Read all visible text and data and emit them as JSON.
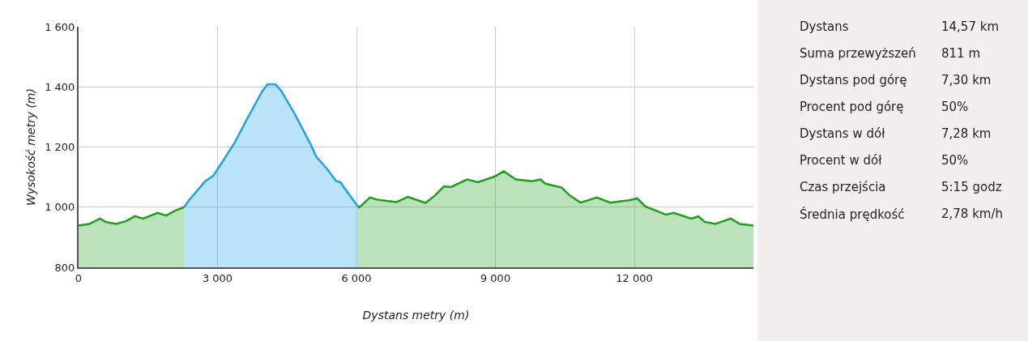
{
  "chart_data": {
    "type": "area",
    "xlabel": "Dystans metry (m)",
    "ylabel": "Wysokość metry (m)",
    "series": [
      {
        "color": "#1f9e1f",
        "x": [
          0,
          230,
          460,
          580,
          810,
          1020,
          1220,
          1390,
          1710,
          1890,
          2090,
          2280
        ],
        "values": [
          939,
          944,
          962,
          951,
          944,
          953,
          970,
          962,
          981,
          972,
          989,
          1000
        ]
      },
      {
        "color": "#1ea3ee",
        "x": [
          2280,
          2390,
          2740,
          2910,
          3140,
          3380,
          3610,
          3960,
          4080,
          4250,
          4370,
          4660,
          5010,
          5130,
          5360,
          5560,
          5650,
          6030
        ],
        "values": [
          1000,
          1024,
          1087,
          1105,
          1159,
          1217,
          1285,
          1384,
          1409,
          1409,
          1388,
          1312,
          1209,
          1168,
          1128,
          1087,
          1083,
          1002
        ]
      },
      {
        "color": "#1f9e1f",
        "x": [
          6030,
          6060,
          6290,
          6470,
          6870,
          7110,
          7490,
          7690,
          7890,
          8040,
          8390,
          8620,
          8970,
          9180,
          9440,
          9790,
          9970,
          10080,
          10430,
          10610,
          10840,
          11190,
          11480,
          11890,
          12060,
          12240,
          12680,
          12850,
          13230,
          13380,
          13520,
          13750,
          14080,
          14280,
          14570
        ],
        "values": [
          1002,
          999,
          1032,
          1024,
          1017,
          1034,
          1014,
          1038,
          1069,
          1067,
          1092,
          1083,
          1101,
          1119,
          1092,
          1086,
          1092,
          1078,
          1065,
          1038,
          1015,
          1032,
          1015,
          1023,
          1029,
          1002,
          975,
          981,
          962,
          969,
          951,
          944,
          962,
          944,
          939
        ]
      }
    ],
    "xlim": [
      0,
      14570
    ],
    "xticks": [
      {
        "value": 0,
        "label": "0"
      },
      {
        "value": 3000,
        "label": "3 000"
      },
      {
        "value": 6000,
        "label": "6 000"
      },
      {
        "value": 9000,
        "label": "9 000"
      },
      {
        "value": 12000,
        "label": "12 000"
      }
    ],
    "ylim": [
      800,
      1600
    ],
    "yticks": [
      800,
      {
        "value": 1000,
        "label": "1 000"
      },
      {
        "value": 1200,
        "label": "1 200"
      },
      {
        "value": 1400,
        "label": "1 400"
      },
      {
        "value": 1600,
        "label": "1 600"
      }
    ],
    "grid": true,
    "annotations": [
      "Dystans",
      "14,57 km",
      "Suma przewyższeń",
      "811 m",
      "Dystans pod górę",
      "7,30 km",
      "Procent pod górę",
      "50%",
      "Dystans w dół",
      "7,28 km",
      "Procent w dół",
      "50%",
      "Czas przejścia",
      "5:15 godz",
      "Średnia prędkość",
      "2,78 km/h"
    ]
  }
}
